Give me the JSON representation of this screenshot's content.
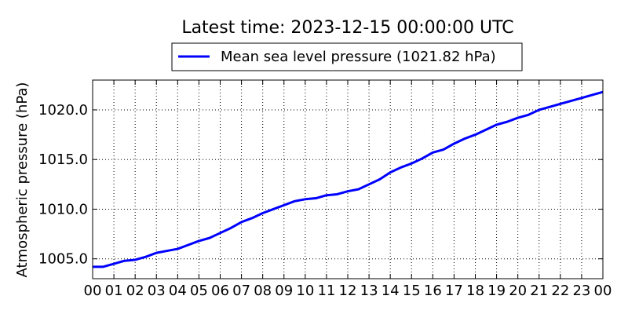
{
  "chart_data": {
    "type": "line",
    "title": "Latest time: 2023-12-15 00:00:00 UTC",
    "xlabel": "",
    "ylabel": "Atmospheric pressure (hPa)",
    "x_tick_labels": [
      "00",
      "01",
      "02",
      "03",
      "04",
      "05",
      "06",
      "07",
      "08",
      "09",
      "10",
      "11",
      "12",
      "13",
      "14",
      "15",
      "16",
      "17",
      "18",
      "19",
      "20",
      "21",
      "22",
      "23",
      "00"
    ],
    "xlim": [
      0,
      24
    ],
    "ylim": [
      1003.0,
      1023.0
    ],
    "y_ticks": [
      1005.0,
      1010.0,
      1015.0,
      1020.0
    ],
    "y_tick_labels": [
      "1005.0",
      "1010.0",
      "1015.0",
      "1020.0"
    ],
    "grid": true,
    "legend_position": "top-center, above plot",
    "series": [
      {
        "name": "Mean sea level pressure (1021.82 hPa)",
        "color": "#0000ff",
        "x": [
          0,
          0.5,
          1,
          1.5,
          2,
          2.5,
          3,
          3.5,
          4,
          4.5,
          5,
          5.5,
          6,
          6.5,
          7,
          7.5,
          8,
          8.5,
          9,
          9.5,
          10,
          10.5,
          11,
          11.5,
          12,
          12.5,
          13,
          13.5,
          14,
          14.5,
          15,
          15.5,
          16,
          16.5,
          17,
          17.5,
          18,
          18.5,
          19,
          19.5,
          20,
          20.5,
          21,
          21.5,
          22,
          22.5,
          23,
          23.5,
          24
        ],
        "y": [
          1004.2,
          1004.2,
          1004.5,
          1004.8,
          1004.9,
          1005.2,
          1005.6,
          1005.8,
          1006.0,
          1006.4,
          1006.8,
          1007.1,
          1007.6,
          1008.1,
          1008.7,
          1009.1,
          1009.6,
          1010.0,
          1010.4,
          1010.8,
          1011.0,
          1011.1,
          1011.4,
          1011.5,
          1011.8,
          1012.0,
          1012.5,
          1013.0,
          1013.7,
          1014.2,
          1014.6,
          1015.1,
          1015.7,
          1016.0,
          1016.6,
          1017.1,
          1017.5,
          1018.0,
          1018.5,
          1018.8,
          1019.2,
          1019.5,
          1020.0,
          1020.3,
          1020.6,
          1020.9,
          1021.2,
          1021.5,
          1021.8
        ]
      }
    ]
  }
}
